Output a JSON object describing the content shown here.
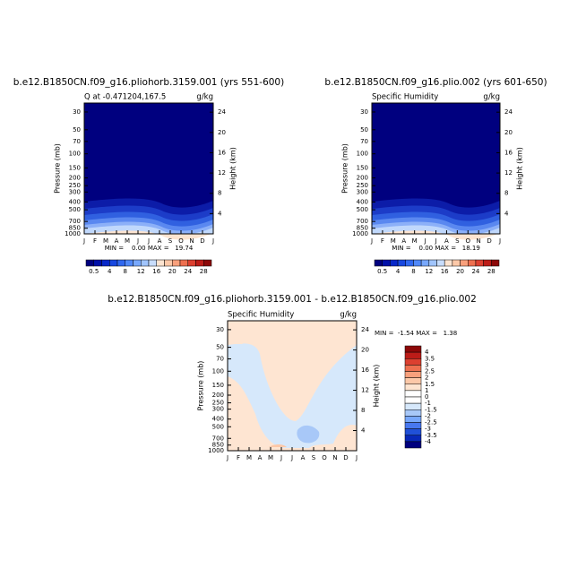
{
  "chart_data": [
    {
      "type": "contour",
      "title": "b.e12.B1850CN.f09_g16.pliohorb.3159.001 (yrs 551-600)",
      "subtitle_left": "Q at -0.471204,167.5",
      "subtitle_right": "g/kg",
      "ylabel": "Pressure (mb)",
      "y2label": "Height (km)",
      "categories": [
        "J",
        "F",
        "M",
        "A",
        "M",
        "J",
        "J",
        "A",
        "S",
        "O",
        "N",
        "D",
        "J"
      ],
      "log_y": true,
      "ylim": [
        1000,
        23.2
      ],
      "yticks": [
        30,
        50,
        70,
        100,
        150,
        200,
        250,
        300,
        400,
        500,
        700,
        850,
        1000
      ],
      "y2lim": [
        0,
        25.8
      ],
      "y2ticks": [
        4,
        8,
        12,
        16,
        20,
        24
      ],
      "stats": "MIN =    0.00 MAX =   19.74",
      "colorbar": {
        "orientation": "horizontal",
        "labels": [
          0.5,
          4,
          8,
          12,
          16,
          20,
          24,
          28
        ],
        "colors": [
          "#00007f",
          "#0010a8",
          "#0828c8",
          "#1848e0",
          "#3068f0",
          "#5088f8",
          "#78a8fc",
          "#a0c4fc",
          "#c8ddfc",
          "#fde4d0",
          "#fcc8a8",
          "#f8a07c",
          "#ee7050",
          "#dc4030",
          "#bc1c18",
          "#8c0808"
        ]
      }
    },
    {
      "type": "contour",
      "title": "b.e12.B1850CN.f09_g16.plio.002 (yrs 601-650)",
      "subtitle_left": "Specific Humidity",
      "subtitle_right": "g/kg",
      "ylabel": "Pressure (mb)",
      "y2label": "Height (km)",
      "categories": [
        "J",
        "F",
        "M",
        "A",
        "M",
        "J",
        "J",
        "A",
        "S",
        "O",
        "N",
        "D",
        "J"
      ],
      "log_y": true,
      "ylim": [
        1000,
        23.2
      ],
      "yticks": [
        30,
        50,
        70,
        100,
        150,
        200,
        250,
        300,
        400,
        500,
        700,
        850,
        1000
      ],
      "y2lim": [
        0,
        25.8
      ],
      "y2ticks": [
        4,
        8,
        12,
        16,
        20,
        24
      ],
      "stats": "MIN =    0.00 MAX =   18.19",
      "colorbar": {
        "orientation": "horizontal",
        "labels": [
          0.5,
          4,
          8,
          12,
          16,
          20,
          24,
          28
        ],
        "colors": [
          "#00007f",
          "#0010a8",
          "#0828c8",
          "#1848e0",
          "#3068f0",
          "#5088f8",
          "#78a8fc",
          "#a0c4fc",
          "#c8ddfc",
          "#fde4d0",
          "#fcc8a8",
          "#f8a07c",
          "#ee7050",
          "#dc4030",
          "#bc1c18",
          "#8c0808"
        ]
      }
    },
    {
      "type": "contour",
      "title": "b.e12.B1850CN.f09_g16.pliohorb.3159.001 - b.e12.B1850CN.f09_g16.plio.002",
      "subtitle_left": "Specific Humidity",
      "subtitle_right": "g/kg",
      "ylabel": "Pressure (mb)",
      "y2label": "Height (km)",
      "categories": [
        "J",
        "F",
        "M",
        "A",
        "M",
        "J",
        "J",
        "A",
        "S",
        "O",
        "N",
        "D",
        "J"
      ],
      "log_y": true,
      "ylim": [
        1000,
        23.2
      ],
      "yticks": [
        30,
        50,
        70,
        100,
        150,
        200,
        250,
        300,
        400,
        500,
        700,
        850,
        1000
      ],
      "y2lim": [
        0,
        25.8
      ],
      "y2ticks": [
        4,
        8,
        12,
        16,
        20,
        24
      ],
      "stats": "MIN =  -1.54 MAX =   1.38",
      "colorbar": {
        "orientation": "vertical",
        "labels": [
          4,
          3.5,
          3,
          2.5,
          2,
          1.5,
          1,
          0,
          -1,
          -1.5,
          -2,
          -2.5,
          -3,
          -3.5,
          -4
        ],
        "colors": [
          "#8c0808",
          "#bc1c18",
          "#dc4030",
          "#ee7050",
          "#f8a07c",
          "#fcc8a8",
          "#fde4d0",
          "#ffffff",
          "#ffffff",
          "#d6e8fb",
          "#a8c8f8",
          "#78a8fc",
          "#4878f0",
          "#2050d8",
          "#0828b8",
          "#00007f"
        ]
      }
    }
  ]
}
